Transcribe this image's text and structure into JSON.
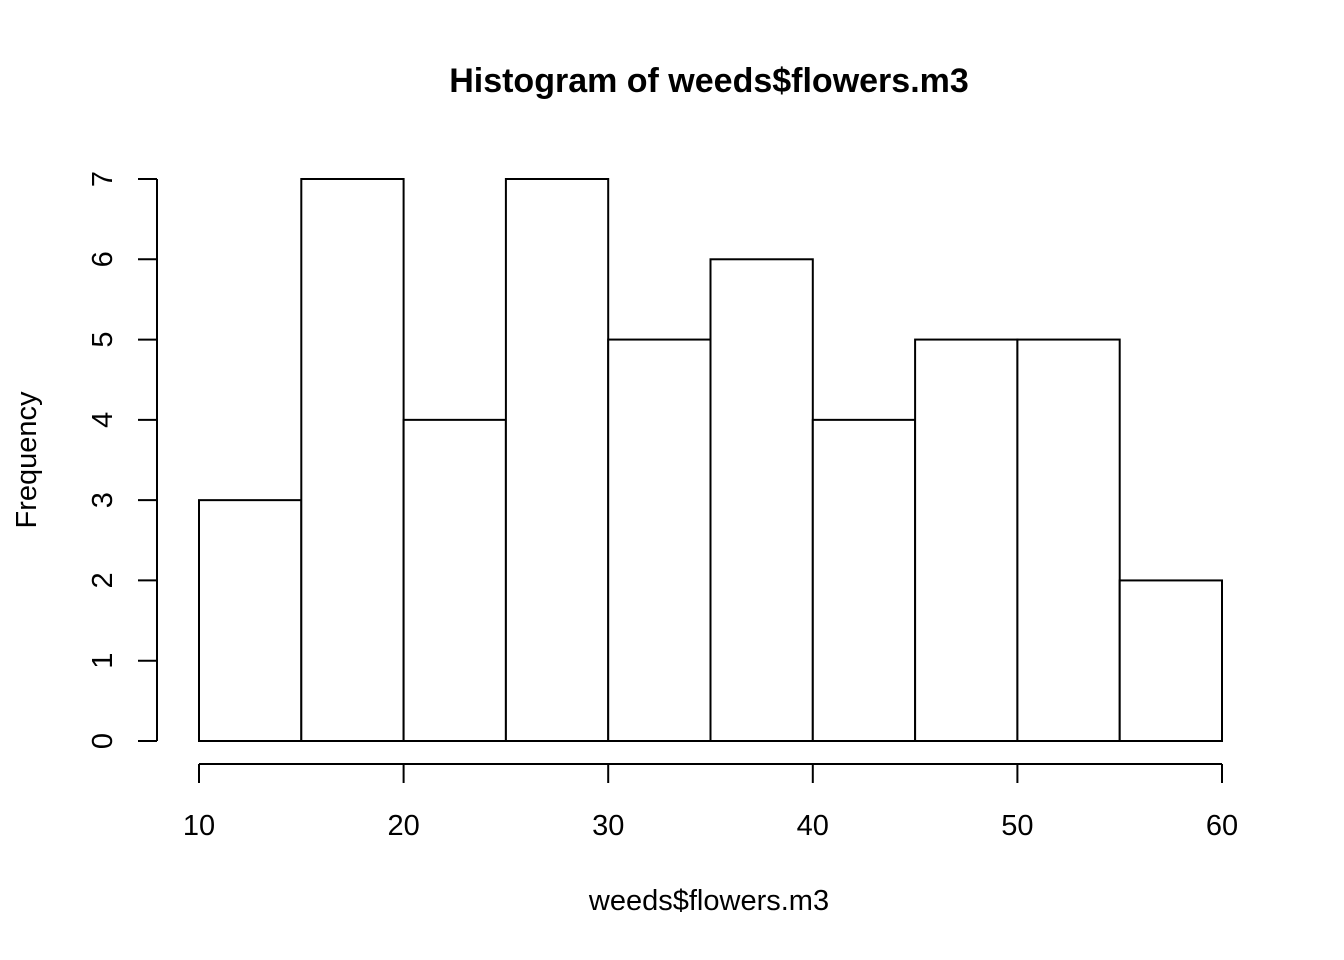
{
  "chart_data": {
    "type": "bar",
    "subtype": "histogram",
    "title": "Histogram of weeds$flowers.m3",
    "xlabel": "weeds$flowers.m3",
    "ylabel": "Frequency",
    "bins": [
      {
        "from": 10,
        "to": 15,
        "count": 3
      },
      {
        "from": 15,
        "to": 20,
        "count": 7
      },
      {
        "from": 20,
        "to": 25,
        "count": 4
      },
      {
        "from": 25,
        "to": 30,
        "count": 7
      },
      {
        "from": 30,
        "to": 35,
        "count": 5
      },
      {
        "from": 35,
        "to": 40,
        "count": 6
      },
      {
        "from": 40,
        "to": 45,
        "count": 4
      },
      {
        "from": 45,
        "to": 50,
        "count": 5
      },
      {
        "from": 50,
        "to": 55,
        "count": 5
      },
      {
        "from": 55,
        "to": 60,
        "count": 2
      }
    ],
    "xlim": [
      10,
      60
    ],
    "ylim": [
      0,
      7
    ],
    "xticks": [
      "10",
      "20",
      "30",
      "40",
      "50",
      "60"
    ],
    "yticks": [
      "0",
      "1",
      "2",
      "3",
      "4",
      "5",
      "6",
      "7"
    ],
    "grid": false,
    "legend": "none",
    "colors": {
      "bar_fill": "#ffffff",
      "bar_stroke": "#000000",
      "axis": "#000000",
      "background": "#ffffff"
    }
  }
}
